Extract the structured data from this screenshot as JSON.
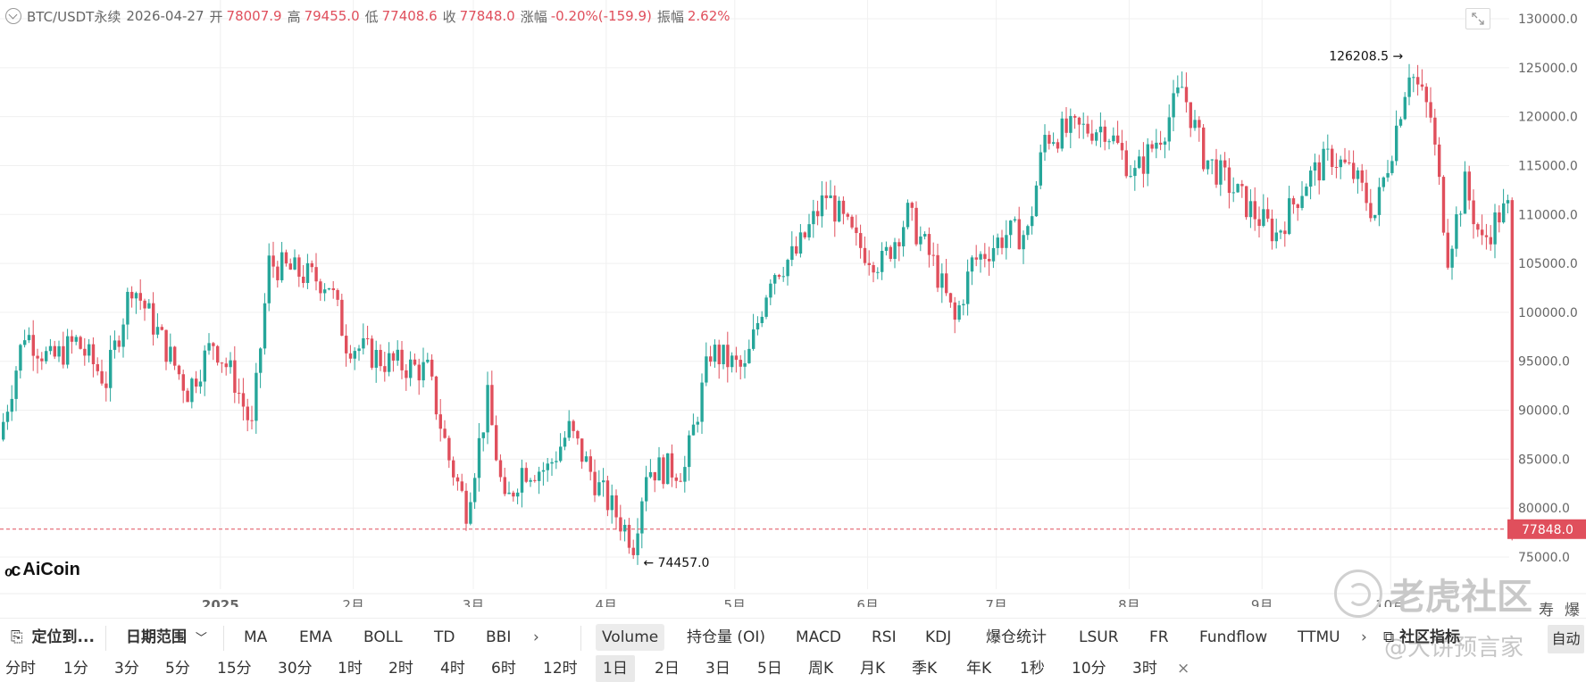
{
  "header": {
    "symbol": "BTC/USDT永续",
    "date": "2026-04-27",
    "open_label": "开",
    "open_value": "78007.9",
    "high_label": "高",
    "high_value": "79455.0",
    "low_label": "低",
    "low_value": "77408.6",
    "close_label": "收",
    "close_value": "77848.0",
    "change_label": "涨幅",
    "change_value": "-0.20%(-159.9)",
    "amplitude_label": "振幅",
    "amplitude_value": "2.62%"
  },
  "colors": {
    "up": "#26a69a",
    "down": "#e04f5c",
    "grid": "#f0f0f0",
    "price_line": "#e04f5c"
  },
  "chart_data": {
    "type": "candlestick",
    "y_ticks": [
      "130000.0",
      "125000.0",
      "120000.0",
      "115000.0",
      "110000.0",
      "105000.0",
      "100000.0",
      "95000.0",
      "90000.0",
      "85000.0",
      "80000.0",
      "75000.0"
    ],
    "ylim": [
      72800,
      131000
    ],
    "x_ticks": [
      {
        "label": "2025",
        "bold": true,
        "day": 51
      },
      {
        "label": "2月",
        "day": 82
      },
      {
        "label": "3月",
        "day": 110
      },
      {
        "label": "4月",
        "day": 141
      },
      {
        "label": "5月",
        "day": 171
      },
      {
        "label": "6月",
        "day": 202
      },
      {
        "label": "7月",
        "day": 232
      },
      {
        "label": "8月",
        "day": 263
      },
      {
        "label": "9月",
        "day": 294
      },
      {
        "label": "10月",
        "day": 324
      }
    ],
    "last_price": "77848.0",
    "last_price_value": 77848,
    "high_marker": {
      "label": "126208.5",
      "value": 126208.5,
      "day": 329
    },
    "low_marker": {
      "label": "74457.0",
      "value": 74457,
      "day": 148
    },
    "anchors": [
      [
        0,
        87000
      ],
      [
        6,
        98000
      ],
      [
        12,
        95000
      ],
      [
        18,
        97000
      ],
      [
        25,
        93000
      ],
      [
        31,
        103000
      ],
      [
        37,
        98000
      ],
      [
        44,
        92000
      ],
      [
        50,
        97000
      ],
      [
        55,
        93000
      ],
      [
        59,
        88000
      ],
      [
        63,
        105000
      ],
      [
        70,
        104000
      ],
      [
        77,
        103000
      ],
      [
        81,
        97000
      ],
      [
        90,
        95000
      ],
      [
        100,
        94000
      ],
      [
        105,
        85000
      ],
      [
        109,
        80000
      ],
      [
        114,
        91000
      ],
      [
        118,
        80000
      ],
      [
        122,
        84000
      ],
      [
        128,
        84000
      ],
      [
        133,
        88000
      ],
      [
        140,
        82000
      ],
      [
        146,
        78000
      ],
      [
        148,
        76500
      ],
      [
        151,
        84000
      ],
      [
        160,
        84000
      ],
      [
        166,
        96000
      ],
      [
        174,
        94000
      ],
      [
        180,
        104000
      ],
      [
        186,
        106000
      ],
      [
        193,
        112000
      ],
      [
        200,
        107000
      ],
      [
        206,
        105000
      ],
      [
        212,
        110000
      ],
      [
        218,
        105000
      ],
      [
        223,
        99000
      ],
      [
        227,
        105000
      ],
      [
        235,
        108000
      ],
      [
        240,
        108000
      ],
      [
        244,
        118000
      ],
      [
        250,
        118500
      ],
      [
        258,
        119000
      ],
      [
        265,
        114000
      ],
      [
        272,
        119000
      ],
      [
        276,
        123000
      ],
      [
        281,
        116000
      ],
      [
        287,
        113000
      ],
      [
        293,
        110000
      ],
      [
        298,
        108000
      ],
      [
        305,
        113500
      ],
      [
        311,
        116000
      ],
      [
        316,
        114000
      ],
      [
        321,
        110000
      ],
      [
        325,
        117000
      ],
      [
        329,
        125000
      ],
      [
        334,
        120000
      ],
      [
        338,
        106000
      ],
      [
        342,
        113000
      ],
      [
        346,
        107000
      ],
      [
        350,
        110000
      ],
      [
        352,
        110500
      ]
    ]
  },
  "logo": {
    "text": "AiCoin"
  },
  "watermark": {
    "text": "老虎社区",
    "subtext": "@大饼预言家"
  },
  "toolbar": {
    "locate": "定位到...",
    "date_range": "日期范围",
    "main_indicators": [
      "MA",
      "EMA",
      "BOLL",
      "TD",
      "BBI"
    ],
    "sub_indicators": [
      "Volume",
      "持仓量 (OI)",
      "MACD",
      "RSI",
      "KDJ",
      "爆仓统计",
      "LSUR",
      "FR",
      "Fundflow",
      "TTMU"
    ],
    "community": "社区指标",
    "auto": "自动",
    "right_chars": [
      "寿",
      "爆"
    ]
  },
  "timeframes": {
    "items": [
      "分时",
      "1分",
      "3分",
      "5分",
      "15分",
      "30分",
      "1时",
      "2时",
      "4时",
      "6时",
      "12时",
      "1日",
      "2日",
      "3日",
      "5日",
      "周K",
      "月K",
      "季K",
      "年K",
      "1秒",
      "10分",
      "3时"
    ],
    "active": "1日",
    "close": "×"
  }
}
